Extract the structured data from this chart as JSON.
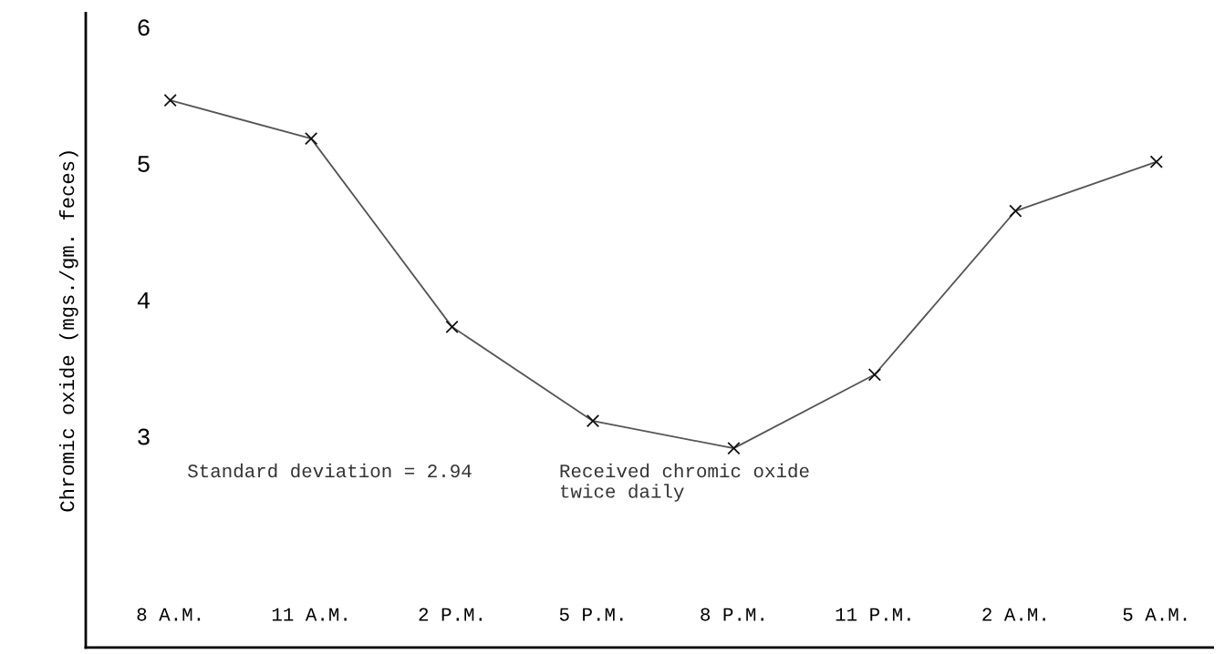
{
  "chart_data": {
    "type": "line",
    "ylabel": "Chromic oxide (mgs./gm. feces)",
    "categories": [
      "8 A.M.",
      "11 A.M.",
      "2 P.M.",
      "5 P.M.",
      "8 P.M.",
      "11 P.M.",
      "2 A.M.",
      "5 A.M."
    ],
    "series": [
      {
        "color": "#555555",
        "values": [
          5.46,
          5.18,
          3.8,
          3.11,
          2.91,
          3.45,
          4.65,
          5.01
        ]
      }
    ],
    "ylim": [
      1.45,
      6.1
    ],
    "yticks": [
      3,
      4,
      5,
      6
    ],
    "marker": "cross",
    "line_style": "solid",
    "grid": false,
    "legend": false,
    "annotations": [
      "Standard deviation = 2.94",
      "Received chromic oxide\ntwice daily"
    ]
  }
}
